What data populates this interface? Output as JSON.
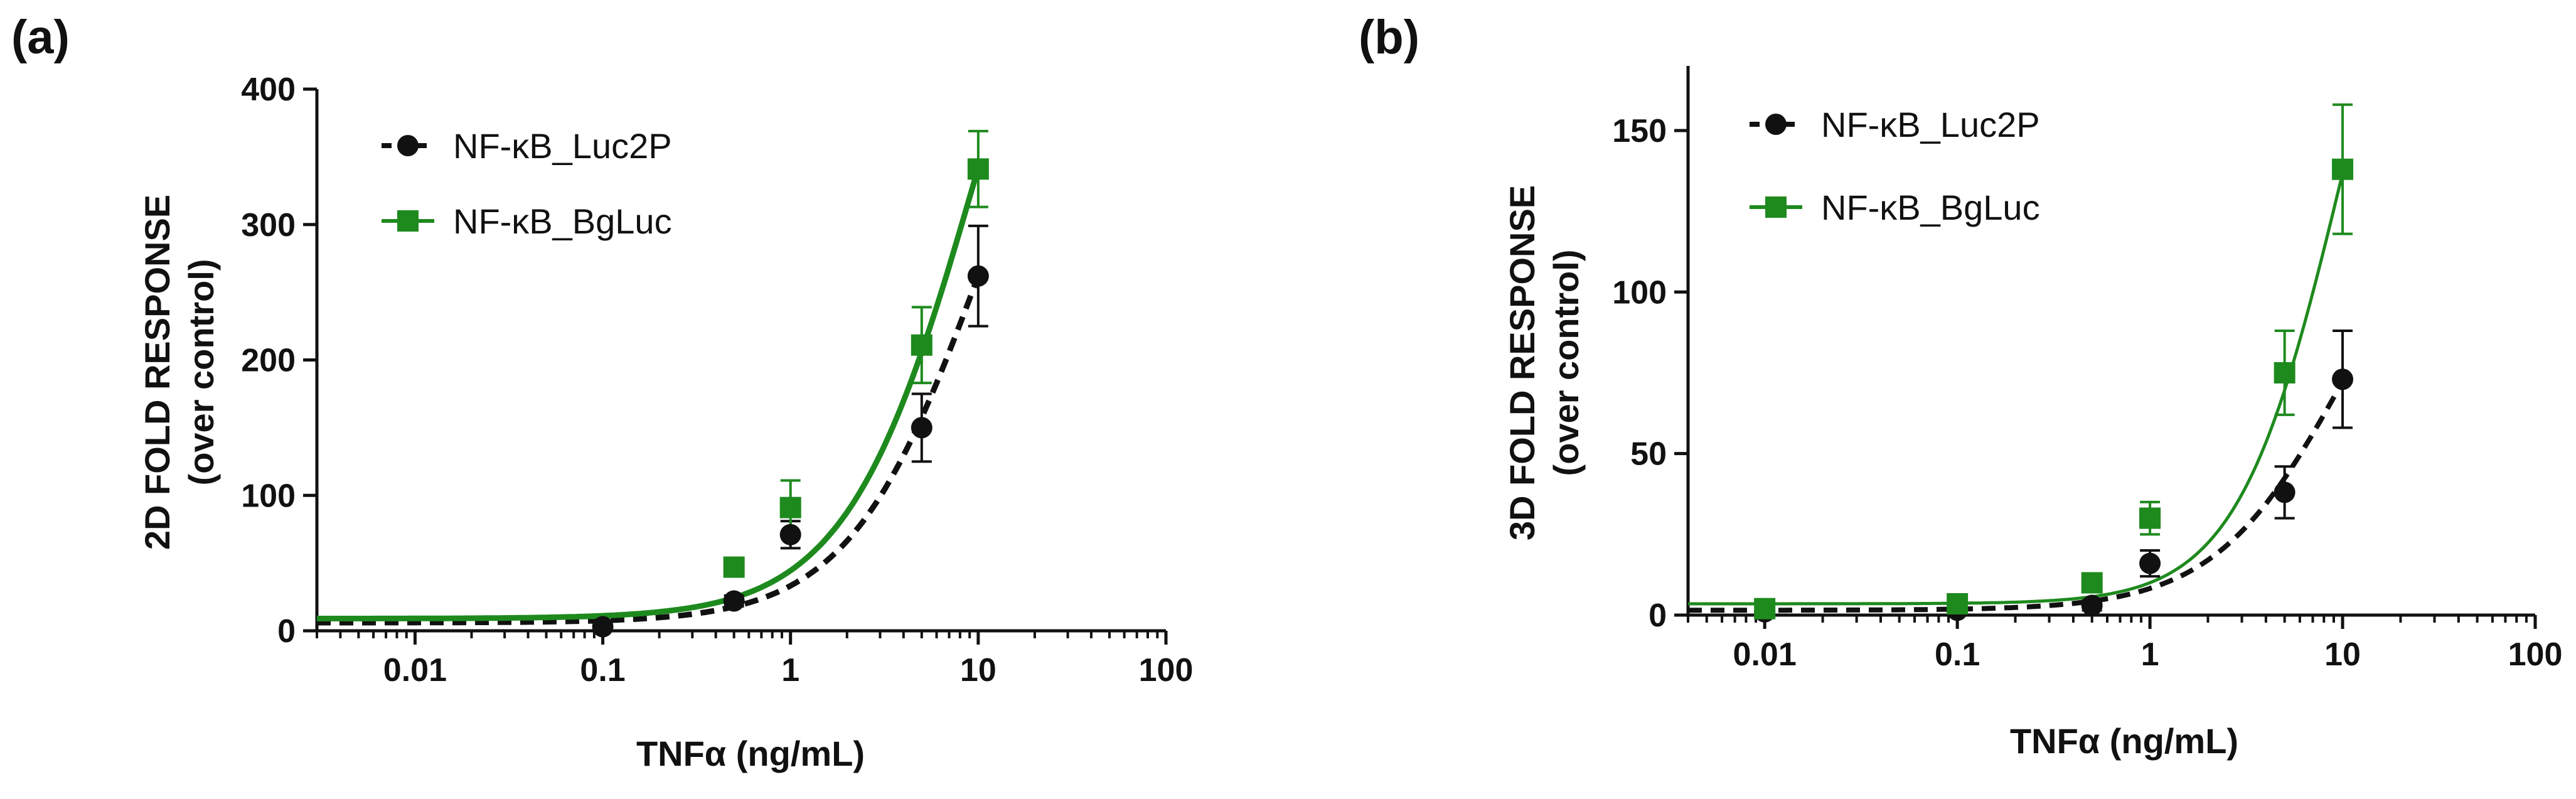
{
  "chart_data": [
    {
      "type": "scatter",
      "panel_label": "(a)",
      "xlabel": "TNFα (ng/mL)",
      "ylabel": "2D FOLD RESPONSE",
      "ylabel_sub": "(over control)",
      "x_scale": "log",
      "xlim": [
        0.003,
        100
      ],
      "ylim": [
        0,
        400
      ],
      "x_ticks": [
        0.01,
        0.1,
        1,
        10,
        100
      ],
      "x_tick_labels": [
        "0.01",
        "0.1",
        "1",
        "10",
        "100"
      ],
      "y_ticks": [
        0,
        100,
        200,
        300,
        400
      ],
      "y_tick_labels": [
        "0",
        "100",
        "200",
        "300",
        "400"
      ],
      "legend_position": "top-left",
      "series": [
        {
          "name": "NF-κB_Luc2P",
          "color": "#111111",
          "marker": "circle",
          "line_style": "dashed",
          "x": [
            0.1,
            0.5,
            1,
            5,
            10
          ],
          "y": [
            3,
            22,
            71,
            150,
            262
          ],
          "error": [
            2,
            4,
            10,
            25,
            37
          ],
          "fit": {
            "bottom": 6,
            "ec50": 10,
            "hill": 1.25,
            "top": 518
          }
        },
        {
          "name": "NF-κB_BgLuc",
          "color": "#1e8a1e",
          "marker": "square",
          "line_style": "solid",
          "x": [
            0.5,
            1,
            5,
            10
          ],
          "y": [
            47,
            91,
            211,
            341
          ],
          "error": [
            5,
            20,
            28,
            28
          ],
          "fit": {
            "bottom": 9,
            "ec50": 10,
            "hill": 1.25,
            "top": 675
          }
        }
      ]
    },
    {
      "type": "scatter",
      "panel_label": "(b)",
      "xlabel": "TNFα (ng/mL)",
      "ylabel": "3D FOLD RESPONSE",
      "ylabel_sub": "(over control)",
      "x_scale": "log",
      "xlim": [
        0.004,
        100
      ],
      "ylim": [
        0,
        170
      ],
      "x_ticks": [
        0.01,
        0.1,
        1,
        10,
        100
      ],
      "x_tick_labels": [
        "0.01",
        "0.1",
        "1",
        "10",
        "100"
      ],
      "y_ticks": [
        0,
        50,
        100,
        150
      ],
      "y_tick_labels": [
        "0",
        "50",
        "100",
        "150"
      ],
      "legend_position": "top-left",
      "series": [
        {
          "name": "NF-κB_Luc2P",
          "color": "#111111",
          "marker": "circle",
          "line_style": "dashed",
          "x": [
            0.01,
            0.1,
            0.5,
            1,
            5,
            10
          ],
          "y": [
            1,
            1.5,
            3,
            16,
            38,
            73
          ],
          "error": [
            1,
            1,
            1.5,
            4,
            8,
            15
          ],
          "fit": {
            "bottom": 1.5,
            "ec50": 10,
            "hill": 1.3,
            "top": 143
          }
        },
        {
          "name": "NF-κB_BgLuc",
          "color": "#1e8a1e",
          "marker": "square",
          "line_style": "solid",
          "x": [
            0.01,
            0.1,
            0.5,
            1,
            5,
            10
          ],
          "y": [
            2,
            3.5,
            10,
            30,
            75,
            138
          ],
          "error": [
            1,
            1.2,
            2,
            5,
            13,
            20
          ],
          "fit": {
            "bottom": 3.5,
            "ec50": 10,
            "hill": 1.6,
            "top": 270
          }
        }
      ]
    }
  ]
}
